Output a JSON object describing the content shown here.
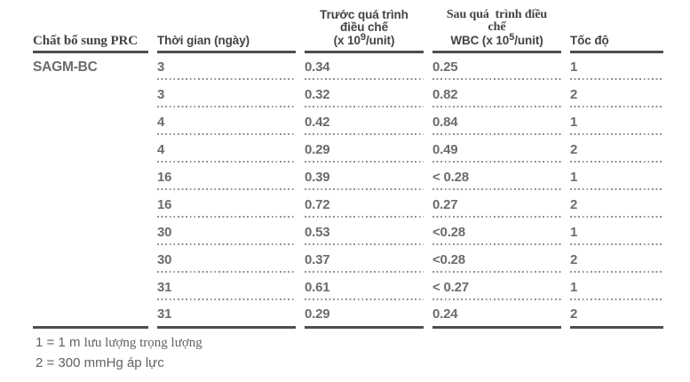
{
  "colors": {
    "header_text": "#424345",
    "value_text": "#6b6c6f",
    "rule": "#4d4e50",
    "dotted_rule": "#8f9193",
    "footnote_text": "#606164"
  },
  "table": {
    "headers": {
      "col1": "Chất bổ sung PRC",
      "col2": "Thời gian (ngày)",
      "col3": {
        "line1": "Trước quá trình",
        "line2": "điều chế",
        "unit_prefix": "(x 10",
        "unit_sup": "9",
        "unit_suffix": "/unit)"
      },
      "col4": {
        "line1": "Sau quá  trình điều",
        "line2": "chế",
        "unit_prefix": "WBC (x 10",
        "unit_sup": "5",
        "unit_suffix": "/unit)"
      },
      "col5": "Tốc độ"
    },
    "group_label": "SAGM-BC",
    "rows": [
      {
        "day": "3",
        "pre": "0.34",
        "post": "0.25",
        "speed": "1"
      },
      {
        "day": "3",
        "pre": "0.32",
        "post": "0.82",
        "speed": "2"
      },
      {
        "day": "4",
        "pre": "0.42",
        "post": "0.84",
        "speed": "1"
      },
      {
        "day": "4",
        "pre": "0.29",
        "post": "0.49",
        "speed": "2"
      },
      {
        "day": "16",
        "pre": "0.39",
        "post": "< 0.28",
        "speed": "1"
      },
      {
        "day": "16",
        "pre": "0.72",
        "post": "0.27",
        "speed": "2"
      },
      {
        "day": "30",
        "pre": "0.53",
        "post": "<0.28",
        "speed": "1"
      },
      {
        "day": "30",
        "pre": "0.37",
        "post": "<0.28",
        "speed": "2"
      },
      {
        "day": "31",
        "pre": "0.61",
        "post": "< 0.27",
        "speed": "1"
      },
      {
        "day": "31",
        "pre": "0.29",
        "post": "0.24",
        "speed": "2"
      }
    ]
  },
  "footnotes": {
    "note1_sans": "1 = 1 m ",
    "note1_serif": "lưu lượng trọng lượng",
    "note2": "2 = 300 mmHg áp lực"
  }
}
